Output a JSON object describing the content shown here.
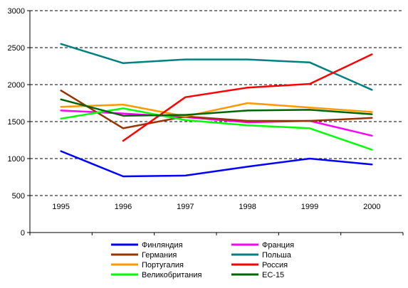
{
  "chart_data": {
    "type": "line",
    "categories": [
      "1995",
      "1996",
      "1997",
      "1998",
      "1999",
      "2000"
    ],
    "ylim": [
      0,
      3000
    ],
    "yticks": [
      0,
      500,
      1000,
      1500,
      2000,
      2500,
      3000
    ],
    "ytick_labels": [
      "0",
      "500",
      "1000",
      "1500",
      "2000",
      "2500",
      "3000"
    ],
    "grid": "horizontal-dashed",
    "legend_position": "bottom",
    "series": [
      {
        "name": "Финляндия",
        "color": "#0000ff",
        "values": [
          1100,
          760,
          770,
          890,
          1000,
          920
        ]
      },
      {
        "name": "Франция",
        "color": "#ff00ff",
        "values": [
          1650,
          1610,
          1560,
          1490,
          1510,
          1310
        ]
      },
      {
        "name": "Германия",
        "color": "#993300",
        "values": [
          1920,
          1410,
          1570,
          1510,
          1510,
          1550
        ]
      },
      {
        "name": "Польша",
        "color": "#008080",
        "values": [
          2550,
          2290,
          2340,
          2340,
          2300,
          1930
        ]
      },
      {
        "name": "Португалия",
        "color": "#ff9900",
        "values": [
          1700,
          1730,
          1570,
          1750,
          1690,
          1630
        ]
      },
      {
        "name": "Россия",
        "color": "#ff0000",
        "values": [
          null,
          1240,
          1830,
          1960,
          2010,
          2410
        ]
      },
      {
        "name": "Великобритания",
        "color": "#00ff00",
        "values": [
          1540,
          1680,
          1520,
          1450,
          1410,
          1120
        ]
      },
      {
        "name": "ЕС-15",
        "color": "#006600",
        "values": [
          1800,
          1580,
          1590,
          1650,
          1660,
          1600
        ]
      }
    ]
  }
}
